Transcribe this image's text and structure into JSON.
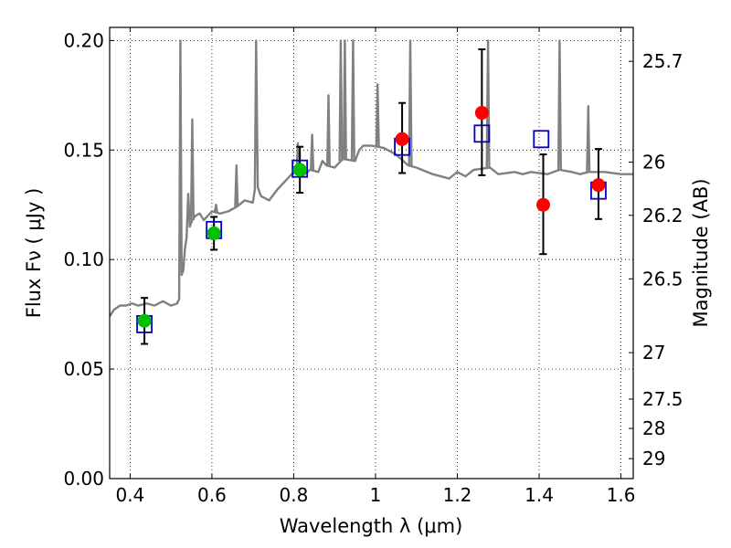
{
  "chart_data": {
    "type": "scatter",
    "xlabel": "Wavelength  λ (μm)",
    "ylabel": "Flux  Fν  ( μJy )",
    "ylabel_right": "Magnitude (AB)",
    "xlim": [
      0.35,
      1.63
    ],
    "ylim": [
      0.0,
      0.206
    ],
    "grid": true,
    "x_ticks": [
      0.4,
      0.6,
      0.8,
      1.0,
      1.2,
      1.4,
      1.6
    ],
    "x_tick_labels": [
      "0.4",
      "0.6",
      "0.8",
      "1",
      "1.2",
      "1.4",
      "1.6"
    ],
    "y_ticks": [
      0.0,
      0.05,
      0.1,
      0.15,
      0.2
    ],
    "y_tick_labels": [
      "0.00",
      "0.05",
      "0.10",
      "0.15",
      "0.20"
    ],
    "right_axis_ticks": [
      {
        "label": "25.7",
        "flux": 0.1905
      },
      {
        "label": "26",
        "flux": 0.1445
      },
      {
        "label": "26.2",
        "flux": 0.1202
      },
      {
        "label": "26.5",
        "flux": 0.0912
      },
      {
        "label": "27",
        "flux": 0.0575
      },
      {
        "label": "27.5",
        "flux": 0.0363
      },
      {
        "label": "28",
        "flux": 0.0229
      },
      {
        "label": "29",
        "flux": 0.0091
      }
    ],
    "series": [
      {
        "marker": "circle",
        "color": "#00c000",
        "x": [
          0.435,
          0.605,
          0.815
        ],
        "y": [
          0.072,
          0.112,
          0.141
        ],
        "yerr": [
          0.0105,
          0.0075,
          0.0105
        ]
      },
      {
        "marker": "circle",
        "color": "#ff0000",
        "x": [
          1.065,
          1.26,
          1.41,
          1.545
        ],
        "y": [
          0.155,
          0.167,
          0.125,
          0.134
        ],
        "yerr_low": [
          0.0155,
          0.0285,
          0.0225,
          0.0155
        ],
        "yerr_high": [
          0.0165,
          0.029,
          0.023,
          0.0165
        ]
      },
      {
        "marker": "open-square",
        "color": "#0000cc",
        "x": [
          0.435,
          0.605,
          0.815,
          1.065,
          1.26,
          1.405,
          1.545
        ],
        "y": [
          0.0705,
          0.1135,
          0.1415,
          0.1515,
          0.1575,
          0.155,
          0.1315
        ]
      },
      {
        "marker": "line",
        "color": "#808080",
        "x": [
          0.35,
          0.36,
          0.375,
          0.39,
          0.405,
          0.42,
          0.44,
          0.46,
          0.48,
          0.5,
          0.515,
          0.52,
          0.523,
          0.526,
          0.53,
          0.534,
          0.538,
          0.542,
          0.546,
          0.552,
          0.56,
          0.57,
          0.58,
          0.6,
          0.62,
          0.64,
          0.66,
          0.68,
          0.7,
          0.705,
          0.708,
          0.712,
          0.72,
          0.74,
          0.76,
          0.78,
          0.8,
          0.82,
          0.84,
          0.86,
          0.87,
          0.88,
          0.9,
          0.92,
          0.95,
          0.96,
          0.97,
          0.99,
          1.02,
          1.05,
          1.08,
          1.1,
          1.14,
          1.18,
          1.2,
          1.22,
          1.24,
          1.28,
          1.3,
          1.34,
          1.36,
          1.38,
          1.42,
          1.45,
          1.48,
          1.5,
          1.52,
          1.56,
          1.6,
          1.63
        ],
        "y": [
          0.074,
          0.077,
          0.079,
          0.079,
          0.08,
          0.079,
          0.08,
          0.079,
          0.081,
          0.079,
          0.08,
          0.082,
          0.2,
          0.093,
          0.095,
          0.105,
          0.11,
          0.13,
          0.115,
          0.118,
          0.12,
          0.121,
          0.118,
          0.122,
          0.121,
          0.122,
          0.124,
          0.127,
          0.126,
          0.132,
          0.2,
          0.133,
          0.129,
          0.127,
          0.132,
          0.136,
          0.14,
          0.138,
          0.141,
          0.14,
          0.145,
          0.143,
          0.142,
          0.146,
          0.145,
          0.15,
          0.152,
          0.152,
          0.151,
          0.148,
          0.143,
          0.142,
          0.139,
          0.137,
          0.14,
          0.138,
          0.141,
          0.142,
          0.139,
          0.14,
          0.139,
          0.14,
          0.139,
          0.141,
          0.14,
          0.139,
          0.14,
          0.14,
          0.139,
          0.139
        ]
      }
    ],
    "emission_spikes": [
      {
        "x": 0.552,
        "y": 0.164
      },
      {
        "x": 0.61,
        "y": 0.125
      },
      {
        "x": 0.66,
        "y": 0.143
      },
      {
        "x": 0.81,
        "y": 0.153
      },
      {
        "x": 0.845,
        "y": 0.157
      },
      {
        "x": 0.885,
        "y": 0.175
      },
      {
        "x": 0.915,
        "y": 0.2
      },
      {
        "x": 0.925,
        "y": 0.2
      },
      {
        "x": 0.945,
        "y": 0.2
      },
      {
        "x": 1.005,
        "y": 0.18
      },
      {
        "x": 1.085,
        "y": 0.2
      },
      {
        "x": 1.275,
        "y": 0.2
      },
      {
        "x": 1.45,
        "y": 0.2
      },
      {
        "x": 1.52,
        "y": 0.17
      }
    ]
  }
}
